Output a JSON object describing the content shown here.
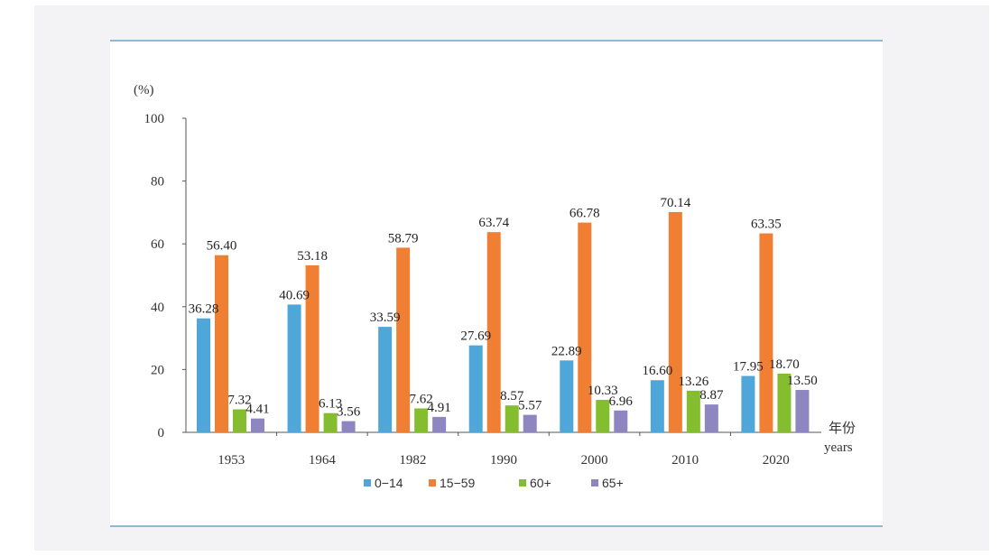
{
  "chart_data": {
    "type": "bar",
    "categories": [
      "1953",
      "1964",
      "1982",
      "1990",
      "2000",
      "2010",
      "2020"
    ],
    "series": [
      {
        "name": "0−14",
        "color": "#4fa7d9",
        "values": [
          36.28,
          40.69,
          33.59,
          27.69,
          22.89,
          16.6,
          17.95
        ]
      },
      {
        "name": "15−59",
        "color": "#f07f33",
        "values": [
          56.4,
          53.18,
          58.79,
          63.74,
          66.78,
          70.14,
          63.35
        ]
      },
      {
        "name": "60+",
        "color": "#84bd2e",
        "values": [
          7.32,
          6.13,
          7.62,
          8.57,
          10.33,
          13.26,
          18.7
        ]
      },
      {
        "name": "65+",
        "color": "#8d86c0",
        "values": [
          4.41,
          3.56,
          4.91,
          5.57,
          6.96,
          8.87,
          13.5
        ]
      }
    ],
    "value_labels": [
      [
        "36.28",
        "40.69",
        "33.59",
        "27.69",
        "22.89",
        "16.60",
        "17.95"
      ],
      [
        "56.40",
        "53.18",
        "58.79",
        "63.74",
        "66.78",
        "70.14",
        "63.35"
      ],
      [
        "7.32",
        "6.13",
        "7.62",
        "8.57",
        "10.33",
        "13.26",
        "18.70"
      ],
      [
        "4.41",
        "3.56",
        "4.91",
        "5.57",
        "6.96",
        "8.87",
        "13.50"
      ]
    ],
    "ylabel": "(%)",
    "xlabel": "年份",
    "xlabel_en": "years",
    "ylim": [
      0,
      100
    ],
    "yticks": [
      "0",
      "20",
      "40",
      "60",
      "80",
      "100"
    ],
    "grid": false,
    "legend_position": "bottom"
  }
}
